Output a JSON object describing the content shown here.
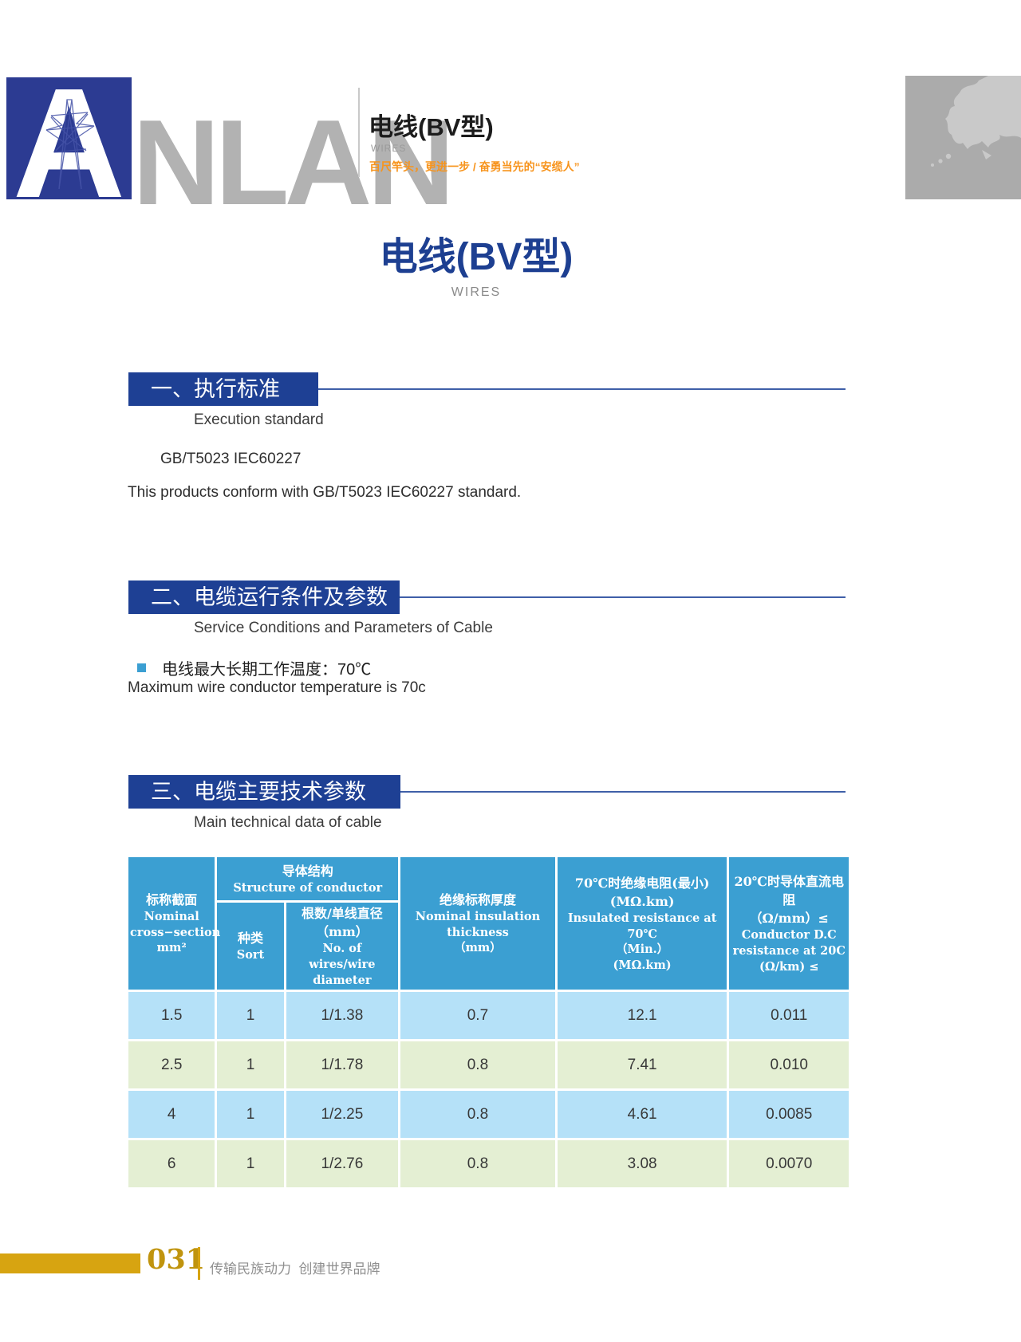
{
  "header": {
    "logo": {
      "a": "A",
      "rest": "NLAN"
    },
    "product_zh": "电线(BV型)",
    "product_en": "WIRES",
    "tagline": "百尺竿头，更进一步 / 奋勇当先的“安缆人”"
  },
  "title": {
    "zh": "电线(BV型)",
    "en": "WIRES"
  },
  "sections": {
    "s1": {
      "heading": "一、执行标准",
      "subtitle": "Execution standard",
      "line1": "GB/T5023  IEC60227",
      "line2": "This products conform with GB/T5023  IEC60227 standard."
    },
    "s2": {
      "heading": "二、电缆运行条件及参数",
      "subtitle": "Service Conditions and Parameters of Cable",
      "bullet_zh": "电线最大长期工作温度：70℃",
      "bullet_en": "Maximum wire conductor temperature is 70c"
    },
    "s3": {
      "heading": "三、电缆主要技术参数",
      "subtitle": "Main technical data of cable"
    }
  },
  "table": {
    "header": {
      "nominal": {
        "zh": "标称截面",
        "en": "Nominal\ncross−section\nmm²"
      },
      "structure": {
        "zh": "导体结构",
        "en": "Structure of conductor"
      },
      "sort": {
        "zh": "种类",
        "en": "Sort"
      },
      "wires": {
        "zh": "根数/单线直径\n（mm）",
        "en": "No. of wires/wire\ndiameter"
      },
      "insulation": {
        "zh": "绝缘标称厚度",
        "en": "Nominal insulation\nthickness\n（mm）"
      },
      "resistance70": {
        "zh": "70℃时绝缘电阻(最小)\n(MΩ.km)",
        "en": "Insulated resistance at 70℃\n（Min.）\n(MΩ.km)"
      },
      "resistance20": {
        "zh": "20℃时导体直流电阻\n（Ω/mm）≤",
        "en": "Conductor D.C\nresistance at 20C\n(Ω/km) ≤"
      }
    },
    "rows": [
      [
        "1.5",
        "1",
        "1/1.38",
        "0.7",
        "12.1",
        "0.011"
      ],
      [
        "2.5",
        "1",
        "1/1.78",
        "0.8",
        "7.41",
        "0.010"
      ],
      [
        "4",
        "1",
        "1/2.25",
        "0.8",
        "4.61",
        "0.0085"
      ],
      [
        "6",
        "1",
        "1/2.76",
        "0.8",
        "3.08",
        "0.0070"
      ]
    ]
  },
  "footer": {
    "page_number": "031",
    "slogan": "传输民族动力  创建世界品牌"
  },
  "colors": {
    "navy_heading": "#1e4094",
    "title_navy": "#1d3f91",
    "logo_blue": "#2c3b92",
    "table_header_blue": "#3b9fd2",
    "row_blue": "#b5e1f8",
    "row_green": "#e4efd3",
    "gold": "#d7a411",
    "tagline_orange": "#f7941d"
  }
}
